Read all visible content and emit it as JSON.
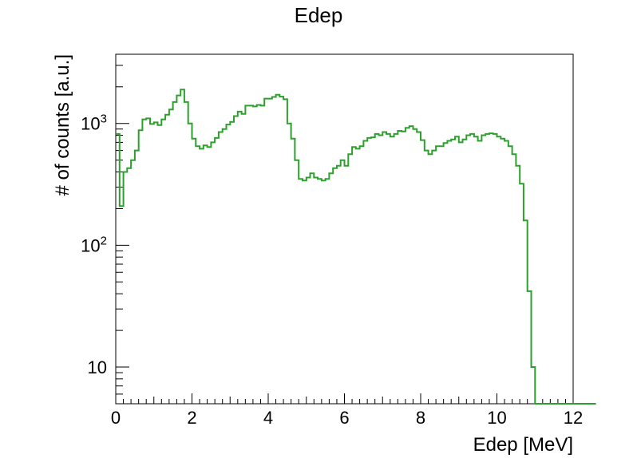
{
  "chart_data": {
    "type": "line",
    "title": "Edep",
    "xlabel": "Edep [MeV]",
    "ylabel": "# of counts [a.u.]",
    "xlim": [
      0,
      12
    ],
    "ylim": [
      5,
      3700
    ],
    "yscale": "log",
    "grid": false,
    "x_ticks": [
      {
        "value": 0,
        "label": "0"
      },
      {
        "value": 2,
        "label": "2"
      },
      {
        "value": 4,
        "label": "4"
      },
      {
        "value": 6,
        "label": "6"
      },
      {
        "value": 8,
        "label": "8"
      },
      {
        "value": 10,
        "label": "10"
      },
      {
        "value": 12,
        "label": "12"
      }
    ],
    "y_ticks": [
      {
        "value": 10,
        "base": "10",
        "exp": ""
      },
      {
        "value": 100,
        "base": "10",
        "exp": "2"
      },
      {
        "value": 1000,
        "base": "10",
        "exp": "3"
      }
    ],
    "series": [
      {
        "color": "#2ca02c",
        "bin_width": 0.1,
        "x_start": 0,
        "values": [
          820,
          210,
          400,
          430,
          500,
          600,
          880,
          1080,
          1100,
          990,
          1020,
          970,
          1080,
          1180,
          1300,
          1500,
          1700,
          1900,
          1500,
          1000,
          750,
          650,
          620,
          660,
          640,
          700,
          760,
          850,
          900,
          980,
          1030,
          1150,
          1250,
          1200,
          1400,
          1400,
          1380,
          1420,
          1400,
          1600,
          1600,
          1650,
          1720,
          1660,
          1580,
          1000,
          750,
          500,
          350,
          340,
          360,
          390,
          360,
          350,
          340,
          350,
          390,
          430,
          450,
          500,
          450,
          560,
          640,
          620,
          650,
          720,
          760,
          770,
          820,
          800,
          850,
          820,
          780,
          820,
          870,
          860,
          920,
          950,
          900,
          850,
          730,
          600,
          560,
          600,
          650,
          650,
          690,
          720,
          740,
          780,
          700,
          740,
          800,
          820,
          780,
          720,
          800,
          820,
          830,
          820,
          780,
          750,
          720,
          650,
          560,
          450,
          320,
          160,
          42,
          10,
          5,
          5,
          5,
          5,
          5,
          5,
          5,
          5,
          5,
          5,
          5,
          5,
          5,
          5,
          5,
          5
        ]
      }
    ]
  }
}
